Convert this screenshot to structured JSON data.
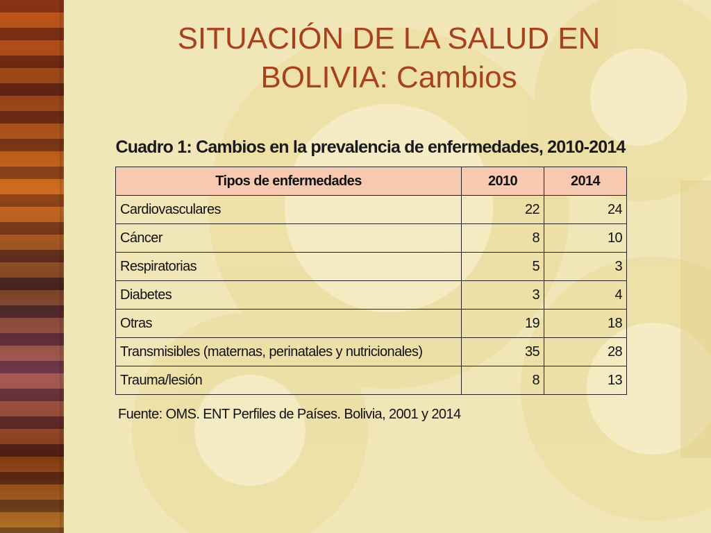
{
  "slide": {
    "title_line1": "SITUACIÓN DE LA SALUD EN",
    "title_line2": "BOLIVIA: Cambios"
  },
  "table": {
    "caption": "Cuadro 1: Cambios en la prevalencia de enfermedades, 2010-2014",
    "headers": [
      "Tipos de enfermedades",
      "2010",
      "2014"
    ],
    "rows": [
      [
        "Cardiovasculares",
        "22",
        "24"
      ],
      [
        "Cáncer",
        "8",
        "10"
      ],
      [
        "Respiratorias",
        "5",
        "3"
      ],
      [
        "Diabetes",
        "3",
        "4"
      ],
      [
        "Otras",
        "19",
        "18"
      ],
      [
        "Transmisibles (maternas, perinatales y nutricionales)",
        "35",
        "28"
      ],
      [
        "Trauma/lesión",
        "8",
        "13"
      ]
    ],
    "source": "Fuente: OMS. ENT Perfiles de Países. Bolivia, 2001 y 2014",
    "header_color": "#f6c9b0"
  },
  "colors": {
    "title": "#a8421c",
    "background": "#f1e6b8"
  }
}
